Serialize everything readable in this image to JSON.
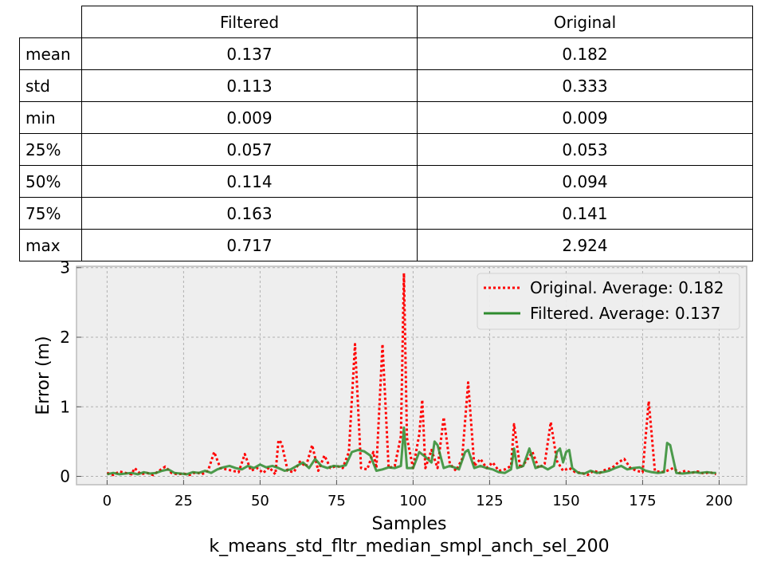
{
  "table": {
    "columns": [
      "Filtered",
      "Original"
    ],
    "rows": [
      {
        "label": "mean",
        "filtered": "0.137",
        "original": "0.182"
      },
      {
        "label": "std",
        "filtered": "0.113",
        "original": "0.333"
      },
      {
        "label": "min",
        "filtered": "0.009",
        "original": "0.009"
      },
      {
        "label": "25%",
        "filtered": "0.057",
        "original": "0.053"
      },
      {
        "label": "50%",
        "filtered": "0.114",
        "original": "0.094"
      },
      {
        "label": "75%",
        "filtered": "0.163",
        "original": "0.141"
      },
      {
        "label": "max",
        "filtered": "0.717",
        "original": "2.924"
      }
    ]
  },
  "chart_data": {
    "type": "line",
    "title": "",
    "xlabel": "Samples",
    "subtitle": "k_means_std_fltr_median_smpl_anch_sel_200",
    "ylabel": "Error (m)",
    "xlim": [
      -10,
      209
    ],
    "ylim": [
      -0.12,
      3.02
    ],
    "xticks": [
      0,
      25,
      50,
      75,
      100,
      125,
      150,
      175,
      200
    ],
    "yticks": [
      0,
      1,
      2,
      3
    ],
    "grid": true,
    "legend_position": "top-right",
    "background": "#eeeeee",
    "series": [
      {
        "name": "Original. Average: 0.182",
        "color": "#ff0000",
        "style": "dotted",
        "points": [
          [
            0,
            0.05
          ],
          [
            2,
            0.02
          ],
          [
            4,
            0.07
          ],
          [
            6,
            0.05
          ],
          [
            8,
            0.03
          ],
          [
            9,
            0.12
          ],
          [
            11,
            0.03
          ],
          [
            13,
            0.05
          ],
          [
            15,
            0.02
          ],
          [
            17,
            0.08
          ],
          [
            19,
            0.14
          ],
          [
            21,
            0.05
          ],
          [
            23,
            0.03
          ],
          [
            25,
            0.04
          ],
          [
            27,
            0.02
          ],
          [
            29,
            0.06
          ],
          [
            31,
            0.03
          ],
          [
            33,
            0.08
          ],
          [
            35,
            0.35
          ],
          [
            37,
            0.12
          ],
          [
            39,
            0.1
          ],
          [
            41,
            0.08
          ],
          [
            43,
            0.06
          ],
          [
            45,
            0.32
          ],
          [
            47,
            0.08
          ],
          [
            49,
            0.12
          ],
          [
            51,
            0.05
          ],
          [
            53,
            0.13
          ],
          [
            55,
            0.03
          ],
          [
            56,
            0.52
          ],
          [
            57,
            0.48
          ],
          [
            59,
            0.08
          ],
          [
            61,
            0.06
          ],
          [
            63,
            0.21
          ],
          [
            65,
            0.14
          ],
          [
            67,
            0.45
          ],
          [
            69,
            0.08
          ],
          [
            71,
            0.3
          ],
          [
            73,
            0.12
          ],
          [
            75,
            0.15
          ],
          [
            77,
            0.12
          ],
          [
            79,
            0.35
          ],
          [
            81,
            1.9
          ],
          [
            83,
            0.12
          ],
          [
            85,
            0.1
          ],
          [
            87,
            0.35
          ],
          [
            88,
            0.12
          ],
          [
            90,
            1.9
          ],
          [
            92,
            0.12
          ],
          [
            94,
            0.15
          ],
          [
            96,
            0.58
          ],
          [
            97,
            2.92
          ],
          [
            98,
            0.55
          ],
          [
            100,
            0.12
          ],
          [
            102,
            0.6
          ],
          [
            103,
            1.1
          ],
          [
            104,
            0.12
          ],
          [
            106,
            0.38
          ],
          [
            108,
            0.12
          ],
          [
            110,
            0.85
          ],
          [
            112,
            0.18
          ],
          [
            114,
            0.08
          ],
          [
            116,
            0.25
          ],
          [
            118,
            1.35
          ],
          [
            120,
            0.15
          ],
          [
            122,
            0.25
          ],
          [
            124,
            0.12
          ],
          [
            126,
            0.2
          ],
          [
            128,
            0.08
          ],
          [
            130,
            0.1
          ],
          [
            132,
            0.15
          ],
          [
            133,
            0.75
          ],
          [
            135,
            0.12
          ],
          [
            137,
            0.22
          ],
          [
            139,
            0.35
          ],
          [
            141,
            0.12
          ],
          [
            143,
            0.18
          ],
          [
            145,
            0.78
          ],
          [
            147,
            0.22
          ],
          [
            149,
            0.08
          ],
          [
            151,
            0.12
          ],
          [
            153,
            0.06
          ],
          [
            155,
            0.05
          ],
          [
            157,
            0.02
          ],
          [
            159,
            0.08
          ],
          [
            161,
            0.05
          ],
          [
            163,
            0.1
          ],
          [
            165,
            0.12
          ],
          [
            167,
            0.2
          ],
          [
            169,
            0.25
          ],
          [
            171,
            0.12
          ],
          [
            173,
            0.08
          ],
          [
            175,
            0.06
          ],
          [
            177,
            1.08
          ],
          [
            179,
            0.08
          ],
          [
            181,
            0.06
          ],
          [
            183,
            0.08
          ],
          [
            185,
            0.12
          ],
          [
            187,
            0.05
          ],
          [
            189,
            0.08
          ],
          [
            191,
            0.05
          ],
          [
            193,
            0.07
          ],
          [
            195,
            0.04
          ],
          [
            197,
            0.06
          ],
          [
            199,
            0.03
          ]
        ]
      },
      {
        "name": "Filtered. Average: 0.137",
        "color": "#2e8b2e",
        "style": "solid",
        "points": [
          [
            0,
            0.03
          ],
          [
            2,
            0.05
          ],
          [
            4,
            0.03
          ],
          [
            6,
            0.04
          ],
          [
            8,
            0.05
          ],
          [
            10,
            0.03
          ],
          [
            12,
            0.06
          ],
          [
            14,
            0.04
          ],
          [
            16,
            0.05
          ],
          [
            18,
            0.08
          ],
          [
            20,
            0.1
          ],
          [
            22,
            0.05
          ],
          [
            24,
            0.04
          ],
          [
            26,
            0.03
          ],
          [
            28,
            0.06
          ],
          [
            30,
            0.05
          ],
          [
            32,
            0.08
          ],
          [
            34,
            0.05
          ],
          [
            36,
            0.1
          ],
          [
            38,
            0.13
          ],
          [
            40,
            0.15
          ],
          [
            42,
            0.12
          ],
          [
            44,
            0.1
          ],
          [
            46,
            0.15
          ],
          [
            48,
            0.12
          ],
          [
            50,
            0.17
          ],
          [
            52,
            0.13
          ],
          [
            54,
            0.15
          ],
          [
            56,
            0.12
          ],
          [
            58,
            0.08
          ],
          [
            60,
            0.1
          ],
          [
            62,
            0.15
          ],
          [
            64,
            0.2
          ],
          [
            66,
            0.12
          ],
          [
            68,
            0.25
          ],
          [
            70,
            0.15
          ],
          [
            72,
            0.12
          ],
          [
            74,
            0.15
          ],
          [
            76,
            0.14
          ],
          [
            78,
            0.16
          ],
          [
            80,
            0.35
          ],
          [
            82,
            0.38
          ],
          [
            84,
            0.36
          ],
          [
            86,
            0.3
          ],
          [
            88,
            0.08
          ],
          [
            90,
            0.1
          ],
          [
            92,
            0.13
          ],
          [
            94,
            0.12
          ],
          [
            96,
            0.15
          ],
          [
            97,
            0.7
          ],
          [
            98,
            0.12
          ],
          [
            100,
            0.12
          ],
          [
            102,
            0.35
          ],
          [
            104,
            0.28
          ],
          [
            106,
            0.2
          ],
          [
            107,
            0.5
          ],
          [
            108,
            0.45
          ],
          [
            110,
            0.12
          ],
          [
            112,
            0.15
          ],
          [
            114,
            0.12
          ],
          [
            115,
            0.1
          ],
          [
            117,
            0.35
          ],
          [
            118,
            0.38
          ],
          [
            120,
            0.12
          ],
          [
            122,
            0.15
          ],
          [
            124,
            0.12
          ],
          [
            126,
            0.1
          ],
          [
            128,
            0.06
          ],
          [
            130,
            0.05
          ],
          [
            132,
            0.1
          ],
          [
            133,
            0.4
          ],
          [
            134,
            0.12
          ],
          [
            136,
            0.15
          ],
          [
            138,
            0.4
          ],
          [
            140,
            0.12
          ],
          [
            142,
            0.15
          ],
          [
            144,
            0.1
          ],
          [
            146,
            0.15
          ],
          [
            147,
            0.35
          ],
          [
            148,
            0.4
          ],
          [
            149,
            0.2
          ],
          [
            150,
            0.35
          ],
          [
            151,
            0.38
          ],
          [
            152,
            0.12
          ],
          [
            154,
            0.05
          ],
          [
            156,
            0.04
          ],
          [
            158,
            0.08
          ],
          [
            160,
            0.05
          ],
          [
            162,
            0.06
          ],
          [
            164,
            0.08
          ],
          [
            166,
            0.12
          ],
          [
            168,
            0.15
          ],
          [
            170,
            0.1
          ],
          [
            172,
            0.12
          ],
          [
            174,
            0.13
          ],
          [
            176,
            0.08
          ],
          [
            178,
            0.06
          ],
          [
            180,
            0.05
          ],
          [
            182,
            0.06
          ],
          [
            183,
            0.48
          ],
          [
            184,
            0.45
          ],
          [
            186,
            0.05
          ],
          [
            188,
            0.04
          ],
          [
            190,
            0.05
          ],
          [
            192,
            0.06
          ],
          [
            194,
            0.05
          ],
          [
            196,
            0.06
          ],
          [
            198,
            0.05
          ],
          [
            199,
            0.05
          ]
        ]
      }
    ]
  }
}
